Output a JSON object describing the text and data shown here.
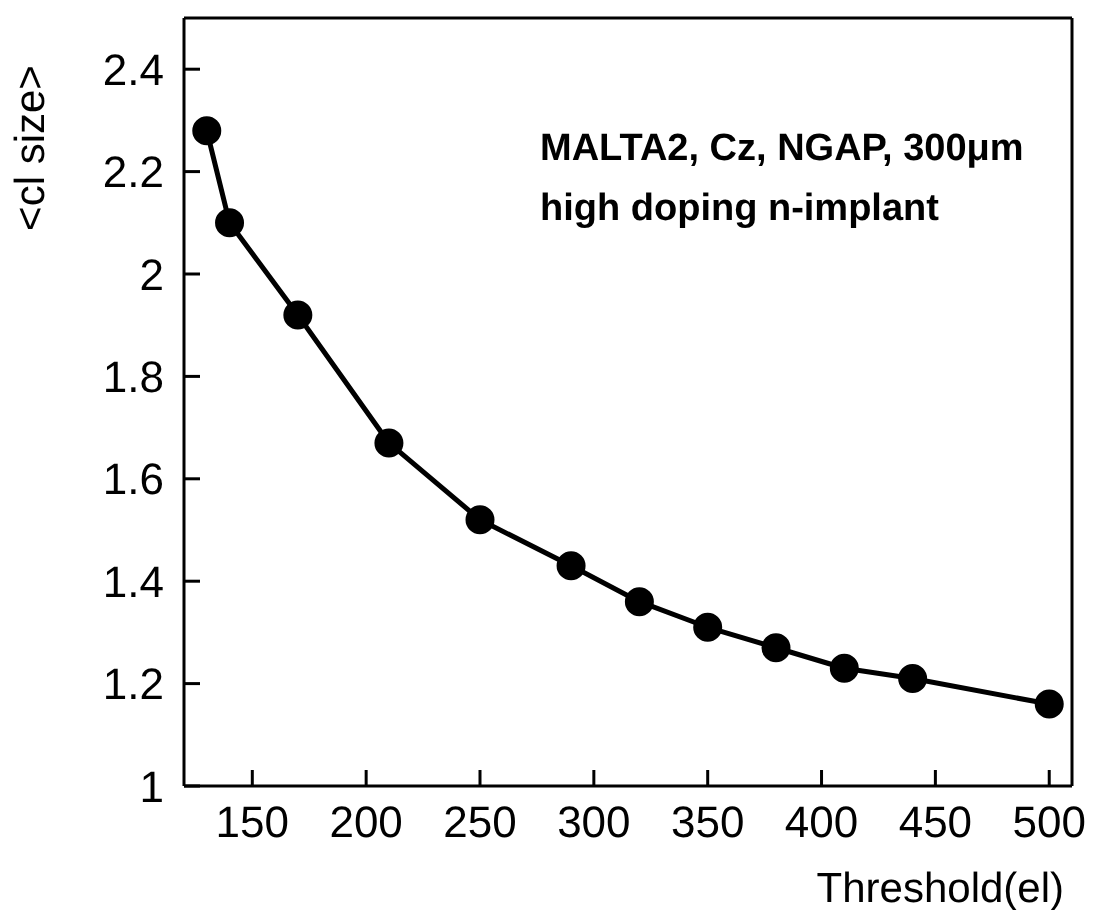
{
  "chart_data": {
    "type": "line",
    "xlabel": "Threshold(el)",
    "ylabel": "<cl size>",
    "annotations": [
      "MALTA2, Cz, NGAP, 300μm",
      "high doping n-implant"
    ],
    "x": [
      130,
      140,
      170,
      210,
      250,
      290,
      320,
      350,
      380,
      410,
      440,
      500
    ],
    "series": [
      {
        "color": "#000000",
        "values": [
          2.28,
          2.1,
          1.92,
          1.67,
          1.52,
          1.43,
          1.36,
          1.31,
          1.27,
          1.23,
          1.21,
          1.16
        ]
      }
    ],
    "xlim": [
      120,
      510
    ],
    "xticks": [
      150,
      200,
      250,
      300,
      350,
      400,
      450,
      500
    ],
    "ylim": [
      1,
      2.5
    ],
    "yticks": [
      1,
      1.2,
      1.4,
      1.6,
      1.8,
      2,
      2.2,
      2.4
    ],
    "grid": false,
    "marker": "circle",
    "line_style": "solid"
  }
}
